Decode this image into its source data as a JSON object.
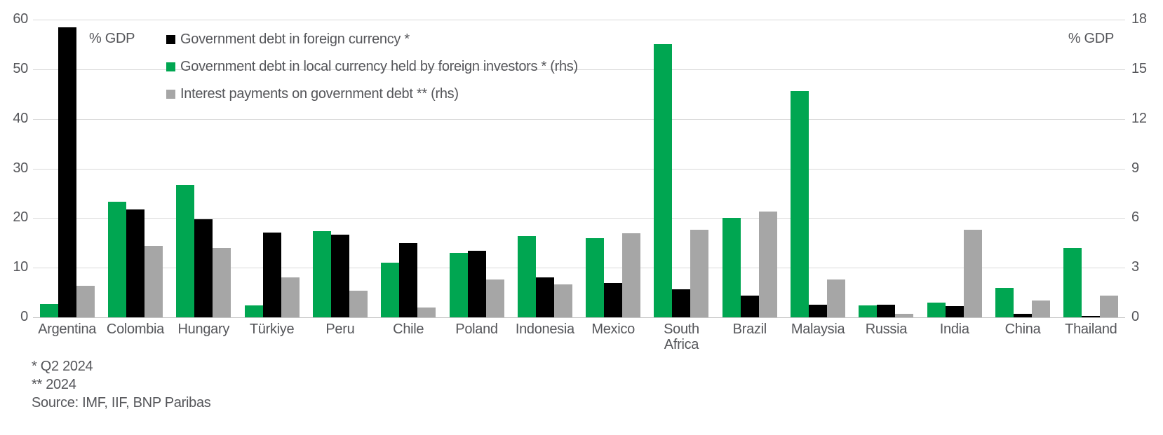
{
  "colors": {
    "black": "#000000",
    "green": "#00a651",
    "gray": "#a6a6a6",
    "grid": "#d9d9d9",
    "text": "#55565a"
  },
  "chart_data": {
    "type": "bar",
    "categories": [
      "Argentina",
      "Colombia",
      "Hungary",
      "Türkiye",
      "Peru",
      "Chile",
      "Poland",
      "Indonesia",
      "Mexico",
      "South Africa",
      "Brazil",
      "Malaysia",
      "Russia",
      "India",
      "China",
      "Thailand"
    ],
    "series": [
      {
        "name": "Government debt in foreign currency *",
        "color_key": "black",
        "axis": "left",
        "values": [
          58.5,
          21.7,
          19.7,
          17.1,
          16.6,
          15.0,
          13.4,
          8.1,
          6.9,
          5.7,
          4.4,
          2.6,
          2.6,
          2.2,
          0.7,
          0.3
        ]
      },
      {
        "name": "Government debt in local currency held by foreign investors * (rhs)",
        "color_key": "green",
        "axis": "right",
        "values": [
          0.8,
          7.0,
          8.0,
          0.7,
          5.2,
          3.3,
          3.9,
          4.9,
          4.8,
          16.5,
          6.0,
          13.7,
          0.7,
          0.9,
          1.8,
          4.2
        ]
      },
      {
        "name": "Interest payments on government debt ** (rhs)",
        "color_key": "gray",
        "axis": "right",
        "values": [
          1.9,
          4.3,
          4.2,
          2.4,
          1.6,
          0.6,
          2.3,
          2.0,
          5.1,
          5.3,
          6.4,
          2.3,
          0.2,
          5.3,
          1.0,
          1.3
        ]
      }
    ],
    "bar_order": [
      "green",
      "black",
      "gray"
    ],
    "left_axis": {
      "label": "% GDP",
      "ticks": [
        0,
        10,
        20,
        30,
        40,
        50,
        60
      ],
      "max": 60
    },
    "right_axis": {
      "label": "% GDP",
      "ticks": [
        0,
        3,
        6,
        9,
        12,
        15,
        18
      ],
      "max": 18
    },
    "grid": true,
    "legend_position": "top-left"
  },
  "footnotes": {
    "note1": "* Q2 2024",
    "note2": "** 2024",
    "source": "Source: IMF, IIF, BNP Paribas"
  }
}
